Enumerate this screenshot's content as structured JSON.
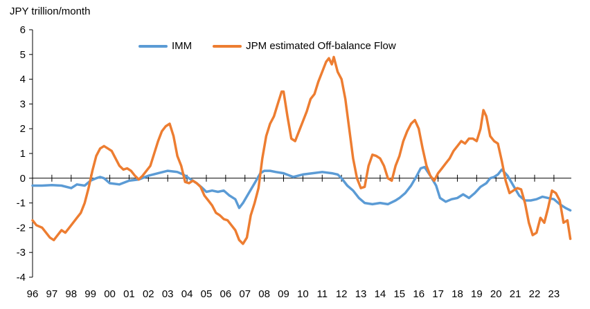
{
  "chart_data": {
    "type": "line",
    "ylabel": "JPY trillion/month",
    "ylim": [
      -4,
      6
    ],
    "yticks": [
      6,
      5,
      4,
      3,
      2,
      1,
      0,
      -1,
      -2,
      -3,
      -4
    ],
    "xlim": [
      1996,
      2023.9
    ],
    "xtick_labels": [
      "96",
      "97",
      "98",
      "99",
      "00",
      "01",
      "02",
      "03",
      "04",
      "05",
      "06",
      "07",
      "08",
      "09",
      "10",
      "11",
      "12",
      "13",
      "14",
      "15",
      "16",
      "17",
      "18",
      "19",
      "20",
      "21",
      "22",
      "23"
    ],
    "legend_position": "top-center",
    "grid": false,
    "series": [
      {
        "name": "IMM",
        "color": "#5B9BD5",
        "points": [
          [
            1996.0,
            -0.3
          ],
          [
            1996.5,
            -0.3
          ],
          [
            1997.0,
            -0.28
          ],
          [
            1997.5,
            -0.3
          ],
          [
            1998.0,
            -0.4
          ],
          [
            1998.3,
            -0.25
          ],
          [
            1998.7,
            -0.3
          ],
          [
            1999.0,
            -0.1
          ],
          [
            1999.3,
            0.0
          ],
          [
            1999.5,
            0.05
          ],
          [
            1999.7,
            0.0
          ],
          [
            2000.0,
            -0.2
          ],
          [
            2000.5,
            -0.25
          ],
          [
            2001.0,
            -0.1
          ],
          [
            2001.5,
            -0.05
          ],
          [
            2002.0,
            0.1
          ],
          [
            2002.5,
            0.2
          ],
          [
            2003.0,
            0.3
          ],
          [
            2003.5,
            0.25
          ],
          [
            2003.8,
            0.15
          ],
          [
            2004.2,
            -0.05
          ],
          [
            2004.5,
            -0.2
          ],
          [
            2004.8,
            -0.4
          ],
          [
            2005.0,
            -0.55
          ],
          [
            2005.3,
            -0.5
          ],
          [
            2005.6,
            -0.55
          ],
          [
            2005.9,
            -0.5
          ],
          [
            2006.2,
            -0.7
          ],
          [
            2006.5,
            -0.85
          ],
          [
            2006.7,
            -1.2
          ],
          [
            2006.9,
            -1.0
          ],
          [
            2007.2,
            -0.6
          ],
          [
            2007.5,
            -0.2
          ],
          [
            2007.8,
            0.2
          ],
          [
            2008.0,
            0.3
          ],
          [
            2008.3,
            0.3
          ],
          [
            2008.6,
            0.25
          ],
          [
            2009.0,
            0.2
          ],
          [
            2009.5,
            0.05
          ],
          [
            2010.0,
            0.15
          ],
          [
            2010.5,
            0.2
          ],
          [
            2011.0,
            0.25
          ],
          [
            2011.5,
            0.2
          ],
          [
            2011.8,
            0.15
          ],
          [
            2012.0,
            0.0
          ],
          [
            2012.3,
            -0.3
          ],
          [
            2012.6,
            -0.5
          ],
          [
            2012.9,
            -0.8
          ],
          [
            2013.2,
            -1.0
          ],
          [
            2013.6,
            -1.05
          ],
          [
            2014.0,
            -1.0
          ],
          [
            2014.4,
            -1.05
          ],
          [
            2014.8,
            -0.9
          ],
          [
            2015.0,
            -0.8
          ],
          [
            2015.3,
            -0.6
          ],
          [
            2015.6,
            -0.3
          ],
          [
            2015.9,
            0.1
          ],
          [
            2016.1,
            0.4
          ],
          [
            2016.3,
            0.45
          ],
          [
            2016.6,
            0.1
          ],
          [
            2016.9,
            -0.3
          ],
          [
            2017.1,
            -0.8
          ],
          [
            2017.4,
            -0.95
          ],
          [
            2017.7,
            -0.85
          ],
          [
            2018.0,
            -0.8
          ],
          [
            2018.3,
            -0.65
          ],
          [
            2018.6,
            -0.8
          ],
          [
            2018.9,
            -0.6
          ],
          [
            2019.2,
            -0.35
          ],
          [
            2019.5,
            -0.2
          ],
          [
            2019.7,
            0.0
          ],
          [
            2019.9,
            0.05
          ],
          [
            2020.1,
            0.15
          ],
          [
            2020.3,
            0.35
          ],
          [
            2020.6,
            0.1
          ],
          [
            2020.9,
            -0.3
          ],
          [
            2021.2,
            -0.7
          ],
          [
            2021.5,
            -0.9
          ],
          [
            2021.8,
            -0.9
          ],
          [
            2022.1,
            -0.85
          ],
          [
            2022.4,
            -0.75
          ],
          [
            2022.7,
            -0.8
          ],
          [
            2023.0,
            -0.85
          ],
          [
            2023.3,
            -1.05
          ],
          [
            2023.6,
            -1.2
          ],
          [
            2023.85,
            -1.3
          ]
        ]
      },
      {
        "name": "JPM estimated Off-balance Flow",
        "color": "#ED7D31",
        "points": [
          [
            1996.0,
            -1.7
          ],
          [
            1996.2,
            -1.9
          ],
          [
            1996.5,
            -2.0
          ],
          [
            1996.7,
            -2.2
          ],
          [
            1996.9,
            -2.4
          ],
          [
            1997.1,
            -2.5
          ],
          [
            1997.3,
            -2.3
          ],
          [
            1997.5,
            -2.1
          ],
          [
            1997.7,
            -2.2
          ],
          [
            1997.9,
            -2.0
          ],
          [
            1998.1,
            -1.8
          ],
          [
            1998.3,
            -1.6
          ],
          [
            1998.5,
            -1.4
          ],
          [
            1998.7,
            -1.0
          ],
          [
            1998.9,
            -0.4
          ],
          [
            1999.1,
            0.3
          ],
          [
            1999.3,
            0.9
          ],
          [
            1999.5,
            1.2
          ],
          [
            1999.7,
            1.3
          ],
          [
            1999.9,
            1.2
          ],
          [
            2000.1,
            1.1
          ],
          [
            2000.3,
            0.8
          ],
          [
            2000.5,
            0.5
          ],
          [
            2000.7,
            0.35
          ],
          [
            2000.9,
            0.4
          ],
          [
            2001.1,
            0.3
          ],
          [
            2001.3,
            0.1
          ],
          [
            2001.5,
            -0.05
          ],
          [
            2001.7,
            0.1
          ],
          [
            2001.9,
            0.3
          ],
          [
            2002.1,
            0.5
          ],
          [
            2002.3,
            1.0
          ],
          [
            2002.5,
            1.5
          ],
          [
            2002.7,
            1.9
          ],
          [
            2002.9,
            2.1
          ],
          [
            2003.1,
            2.2
          ],
          [
            2003.3,
            1.7
          ],
          [
            2003.5,
            0.9
          ],
          [
            2003.7,
            0.5
          ],
          [
            2003.9,
            -0.15
          ],
          [
            2004.1,
            -0.2
          ],
          [
            2004.3,
            -0.1
          ],
          [
            2004.5,
            -0.2
          ],
          [
            2004.7,
            -0.35
          ],
          [
            2004.9,
            -0.7
          ],
          [
            2005.1,
            -0.9
          ],
          [
            2005.3,
            -1.1
          ],
          [
            2005.5,
            -1.4
          ],
          [
            2005.7,
            -1.5
          ],
          [
            2005.9,
            -1.65
          ],
          [
            2006.1,
            -1.7
          ],
          [
            2006.3,
            -1.9
          ],
          [
            2006.5,
            -2.1
          ],
          [
            2006.7,
            -2.5
          ],
          [
            2006.9,
            -2.65
          ],
          [
            2007.1,
            -2.4
          ],
          [
            2007.3,
            -1.5
          ],
          [
            2007.5,
            -1.0
          ],
          [
            2007.7,
            -0.4
          ],
          [
            2007.9,
            0.8
          ],
          [
            2008.1,
            1.7
          ],
          [
            2008.3,
            2.2
          ],
          [
            2008.5,
            2.5
          ],
          [
            2008.7,
            3.0
          ],
          [
            2008.9,
            3.5
          ],
          [
            2009.0,
            3.5
          ],
          [
            2009.2,
            2.5
          ],
          [
            2009.4,
            1.6
          ],
          [
            2009.6,
            1.5
          ],
          [
            2009.8,
            1.9
          ],
          [
            2010.0,
            2.3
          ],
          [
            2010.2,
            2.7
          ],
          [
            2010.4,
            3.2
          ],
          [
            2010.6,
            3.4
          ],
          [
            2010.8,
            3.9
          ],
          [
            2011.0,
            4.3
          ],
          [
            2011.2,
            4.7
          ],
          [
            2011.35,
            4.85
          ],
          [
            2011.5,
            4.6
          ],
          [
            2011.6,
            4.9
          ],
          [
            2011.8,
            4.3
          ],
          [
            2012.0,
            4.0
          ],
          [
            2012.2,
            3.2
          ],
          [
            2012.4,
            2.0
          ],
          [
            2012.6,
            0.8
          ],
          [
            2012.8,
            0.0
          ],
          [
            2013.0,
            -0.4
          ],
          [
            2013.2,
            -0.35
          ],
          [
            2013.4,
            0.5
          ],
          [
            2013.6,
            0.95
          ],
          [
            2013.8,
            0.9
          ],
          [
            2014.0,
            0.8
          ],
          [
            2014.2,
            0.5
          ],
          [
            2014.4,
            0.0
          ],
          [
            2014.6,
            -0.1
          ],
          [
            2014.8,
            0.5
          ],
          [
            2015.0,
            0.9
          ],
          [
            2015.2,
            1.5
          ],
          [
            2015.4,
            1.9
          ],
          [
            2015.6,
            2.2
          ],
          [
            2015.8,
            2.35
          ],
          [
            2016.0,
            2.0
          ],
          [
            2016.2,
            1.2
          ],
          [
            2016.4,
            0.5
          ],
          [
            2016.6,
            0.1
          ],
          [
            2016.8,
            -0.1
          ],
          [
            2017.0,
            0.2
          ],
          [
            2017.2,
            0.4
          ],
          [
            2017.4,
            0.6
          ],
          [
            2017.6,
            0.8
          ],
          [
            2017.8,
            1.1
          ],
          [
            2018.0,
            1.3
          ],
          [
            2018.2,
            1.5
          ],
          [
            2018.4,
            1.4
          ],
          [
            2018.6,
            1.6
          ],
          [
            2018.8,
            1.6
          ],
          [
            2019.0,
            1.5
          ],
          [
            2019.2,
            2.0
          ],
          [
            2019.35,
            2.75
          ],
          [
            2019.5,
            2.5
          ],
          [
            2019.7,
            1.7
          ],
          [
            2019.9,
            1.5
          ],
          [
            2020.1,
            1.4
          ],
          [
            2020.3,
            0.7
          ],
          [
            2020.5,
            -0.1
          ],
          [
            2020.7,
            -0.6
          ],
          [
            2020.9,
            -0.5
          ],
          [
            2021.1,
            -0.4
          ],
          [
            2021.3,
            -0.45
          ],
          [
            2021.5,
            -1.0
          ],
          [
            2021.7,
            -1.8
          ],
          [
            2021.9,
            -2.3
          ],
          [
            2022.1,
            -2.2
          ],
          [
            2022.3,
            -1.6
          ],
          [
            2022.5,
            -1.8
          ],
          [
            2022.7,
            -1.2
          ],
          [
            2022.9,
            -0.5
          ],
          [
            2023.1,
            -0.6
          ],
          [
            2023.3,
            -0.9
          ],
          [
            2023.5,
            -1.8
          ],
          [
            2023.7,
            -1.7
          ],
          [
            2023.85,
            -2.45
          ]
        ]
      }
    ]
  }
}
